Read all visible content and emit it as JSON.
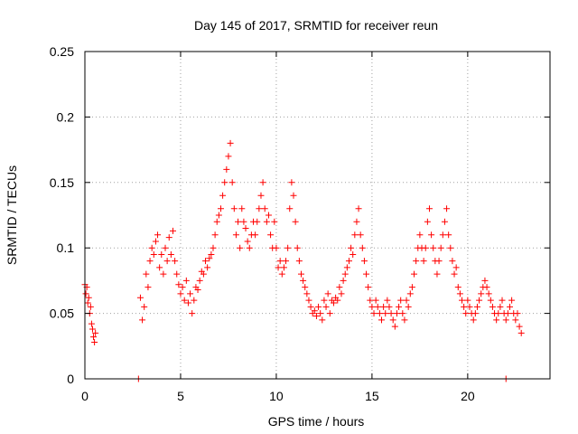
{
  "chart_data": {
    "type": "scatter",
    "title": "Day 145 of 2017, SRMTID for receiver reun",
    "xlabel": "GPS time / hours",
    "ylabel": "SRMTID / TECUs",
    "xlim": [
      0,
      24.3
    ],
    "ylim": [
      0,
      0.25
    ],
    "x_ticks": [
      0,
      5,
      10,
      15,
      20
    ],
    "x_tick_labels": [
      "0",
      "5",
      "10",
      "15",
      "20"
    ],
    "y_ticks": [
      0,
      0.05,
      0.1,
      0.15,
      0.2,
      0.25
    ],
    "y_tick_labels": [
      "0",
      "0.05",
      "0.1",
      "0.15",
      "0.2",
      "0.25"
    ],
    "grid": true,
    "marker": "+",
    "color": "#ff0000",
    "series": [
      {
        "name": "SRMTID",
        "points": [
          [
            0.0,
            0.072
          ],
          [
            0.05,
            0.065
          ],
          [
            0.1,
            0.07
          ],
          [
            0.15,
            0.058
          ],
          [
            0.2,
            0.062
          ],
          [
            0.25,
            0.05
          ],
          [
            0.3,
            0.055
          ],
          [
            0.35,
            0.042
          ],
          [
            0.4,
            0.038
          ],
          [
            0.45,
            0.032
          ],
          [
            0.5,
            0.028
          ],
          [
            0.55,
            0.035
          ],
          [
            2.8,
            0.0
          ],
          [
            22.0,
            0.0
          ],
          [
            2.9,
            0.062
          ],
          [
            3.0,
            0.045
          ],
          [
            3.1,
            0.055
          ],
          [
            3.2,
            0.08
          ],
          [
            3.3,
            0.07
          ],
          [
            3.4,
            0.09
          ],
          [
            3.5,
            0.1
          ],
          [
            3.6,
            0.095
          ],
          [
            3.7,
            0.105
          ],
          [
            3.8,
            0.11
          ],
          [
            3.9,
            0.085
          ],
          [
            4.0,
            0.095
          ],
          [
            4.1,
            0.08
          ],
          [
            4.2,
            0.1
          ],
          [
            4.3,
            0.09
          ],
          [
            4.4,
            0.108
          ],
          [
            4.5,
            0.095
          ],
          [
            4.6,
            0.113
          ],
          [
            4.7,
            0.09
          ],
          [
            4.8,
            0.08
          ],
          [
            4.9,
            0.072
          ],
          [
            5.0,
            0.065
          ],
          [
            5.1,
            0.07
          ],
          [
            5.2,
            0.06
          ],
          [
            5.3,
            0.075
          ],
          [
            5.4,
            0.058
          ],
          [
            5.5,
            0.065
          ],
          [
            5.6,
            0.05
          ],
          [
            5.7,
            0.06
          ],
          [
            5.8,
            0.07
          ],
          [
            5.9,
            0.068
          ],
          [
            6.0,
            0.075
          ],
          [
            6.1,
            0.082
          ],
          [
            6.2,
            0.08
          ],
          [
            6.3,
            0.09
          ],
          [
            6.4,
            0.085
          ],
          [
            6.5,
            0.092
          ],
          [
            6.6,
            0.095
          ],
          [
            6.7,
            0.1
          ],
          [
            6.8,
            0.11
          ],
          [
            6.9,
            0.12
          ],
          [
            7.0,
            0.125
          ],
          [
            7.1,
            0.13
          ],
          [
            7.2,
            0.14
          ],
          [
            7.3,
            0.15
          ],
          [
            7.4,
            0.16
          ],
          [
            7.5,
            0.17
          ],
          [
            7.6,
            0.18
          ],
          [
            7.7,
            0.15
          ],
          [
            7.8,
            0.13
          ],
          [
            7.9,
            0.11
          ],
          [
            8.0,
            0.12
          ],
          [
            8.1,
            0.1
          ],
          [
            8.2,
            0.13
          ],
          [
            8.3,
            0.12
          ],
          [
            8.4,
            0.115
          ],
          [
            8.5,
            0.105
          ],
          [
            8.6,
            0.1
          ],
          [
            8.7,
            0.11
          ],
          [
            8.8,
            0.12
          ],
          [
            8.9,
            0.11
          ],
          [
            9.0,
            0.12
          ],
          [
            9.1,
            0.13
          ],
          [
            9.2,
            0.14
          ],
          [
            9.3,
            0.15
          ],
          [
            9.4,
            0.13
          ],
          [
            9.5,
            0.12
          ],
          [
            9.6,
            0.125
          ],
          [
            9.7,
            0.11
          ],
          [
            9.8,
            0.1
          ],
          [
            9.9,
            0.12
          ],
          [
            10.0,
            0.1
          ],
          [
            10.1,
            0.085
          ],
          [
            10.2,
            0.09
          ],
          [
            10.3,
            0.08
          ],
          [
            10.4,
            0.085
          ],
          [
            10.5,
            0.09
          ],
          [
            10.6,
            0.1
          ],
          [
            10.7,
            0.13
          ],
          [
            10.8,
            0.15
          ],
          [
            10.9,
            0.14
          ],
          [
            11.0,
            0.12
          ],
          [
            11.1,
            0.1
          ],
          [
            11.2,
            0.09
          ],
          [
            11.3,
            0.08
          ],
          [
            11.4,
            0.075
          ],
          [
            11.5,
            0.07
          ],
          [
            11.6,
            0.065
          ],
          [
            11.7,
            0.06
          ],
          [
            11.8,
            0.055
          ],
          [
            11.9,
            0.05
          ],
          [
            12.0,
            0.052
          ],
          [
            12.1,
            0.048
          ],
          [
            12.2,
            0.055
          ],
          [
            12.3,
            0.05
          ],
          [
            12.4,
            0.045
          ],
          [
            12.5,
            0.06
          ],
          [
            12.6,
            0.055
          ],
          [
            12.7,
            0.065
          ],
          [
            12.8,
            0.05
          ],
          [
            12.9,
            0.06
          ],
          [
            13.0,
            0.058
          ],
          [
            13.1,
            0.062
          ],
          [
            13.2,
            0.06
          ],
          [
            13.3,
            0.07
          ],
          [
            13.4,
            0.065
          ],
          [
            13.5,
            0.075
          ],
          [
            13.6,
            0.08
          ],
          [
            13.7,
            0.085
          ],
          [
            13.8,
            0.09
          ],
          [
            13.9,
            0.1
          ],
          [
            14.0,
            0.095
          ],
          [
            14.1,
            0.11
          ],
          [
            14.2,
            0.12
          ],
          [
            14.3,
            0.13
          ],
          [
            14.4,
            0.11
          ],
          [
            14.5,
            0.1
          ],
          [
            14.6,
            0.09
          ],
          [
            14.7,
            0.08
          ],
          [
            14.8,
            0.07
          ],
          [
            14.9,
            0.06
          ],
          [
            15.0,
            0.055
          ],
          [
            15.1,
            0.05
          ],
          [
            15.2,
            0.06
          ],
          [
            15.3,
            0.055
          ],
          [
            15.4,
            0.05
          ],
          [
            15.5,
            0.045
          ],
          [
            15.6,
            0.055
          ],
          [
            15.7,
            0.05
          ],
          [
            15.8,
            0.06
          ],
          [
            15.9,
            0.055
          ],
          [
            16.0,
            0.05
          ],
          [
            16.1,
            0.045
          ],
          [
            16.2,
            0.04
          ],
          [
            16.3,
            0.05
          ],
          [
            16.4,
            0.055
          ],
          [
            16.5,
            0.06
          ],
          [
            16.6,
            0.05
          ],
          [
            16.7,
            0.045
          ],
          [
            16.8,
            0.06
          ],
          [
            16.9,
            0.055
          ],
          [
            17.0,
            0.065
          ],
          [
            17.1,
            0.07
          ],
          [
            17.2,
            0.08
          ],
          [
            17.3,
            0.09
          ],
          [
            17.4,
            0.1
          ],
          [
            17.5,
            0.11
          ],
          [
            17.6,
            0.1
          ],
          [
            17.7,
            0.09
          ],
          [
            17.8,
            0.1
          ],
          [
            17.9,
            0.12
          ],
          [
            18.0,
            0.13
          ],
          [
            18.1,
            0.11
          ],
          [
            18.2,
            0.1
          ],
          [
            18.3,
            0.09
          ],
          [
            18.4,
            0.08
          ],
          [
            18.5,
            0.09
          ],
          [
            18.6,
            0.1
          ],
          [
            18.7,
            0.11
          ],
          [
            18.8,
            0.12
          ],
          [
            18.9,
            0.13
          ],
          [
            19.0,
            0.11
          ],
          [
            19.1,
            0.1
          ],
          [
            19.2,
            0.09
          ],
          [
            19.3,
            0.08
          ],
          [
            19.4,
            0.085
          ],
          [
            19.5,
            0.07
          ],
          [
            19.6,
            0.065
          ],
          [
            19.7,
            0.06
          ],
          [
            19.8,
            0.055
          ],
          [
            19.9,
            0.05
          ],
          [
            20.0,
            0.06
          ],
          [
            20.1,
            0.055
          ],
          [
            20.2,
            0.05
          ],
          [
            20.3,
            0.045
          ],
          [
            20.4,
            0.05
          ],
          [
            20.5,
            0.055
          ],
          [
            20.6,
            0.06
          ],
          [
            20.7,
            0.065
          ],
          [
            20.8,
            0.07
          ],
          [
            20.9,
            0.075
          ],
          [
            21.0,
            0.07
          ],
          [
            21.1,
            0.065
          ],
          [
            21.2,
            0.06
          ],
          [
            21.3,
            0.055
          ],
          [
            21.4,
            0.05
          ],
          [
            21.5,
            0.045
          ],
          [
            21.6,
            0.05
          ],
          [
            21.7,
            0.055
          ],
          [
            21.8,
            0.06
          ],
          [
            21.9,
            0.05
          ],
          [
            22.0,
            0.045
          ],
          [
            22.1,
            0.05
          ],
          [
            22.2,
            0.055
          ],
          [
            22.3,
            0.06
          ],
          [
            22.4,
            0.05
          ],
          [
            22.5,
            0.045
          ],
          [
            22.6,
            0.05
          ],
          [
            22.7,
            0.04
          ],
          [
            22.8,
            0.035
          ]
        ]
      }
    ]
  }
}
